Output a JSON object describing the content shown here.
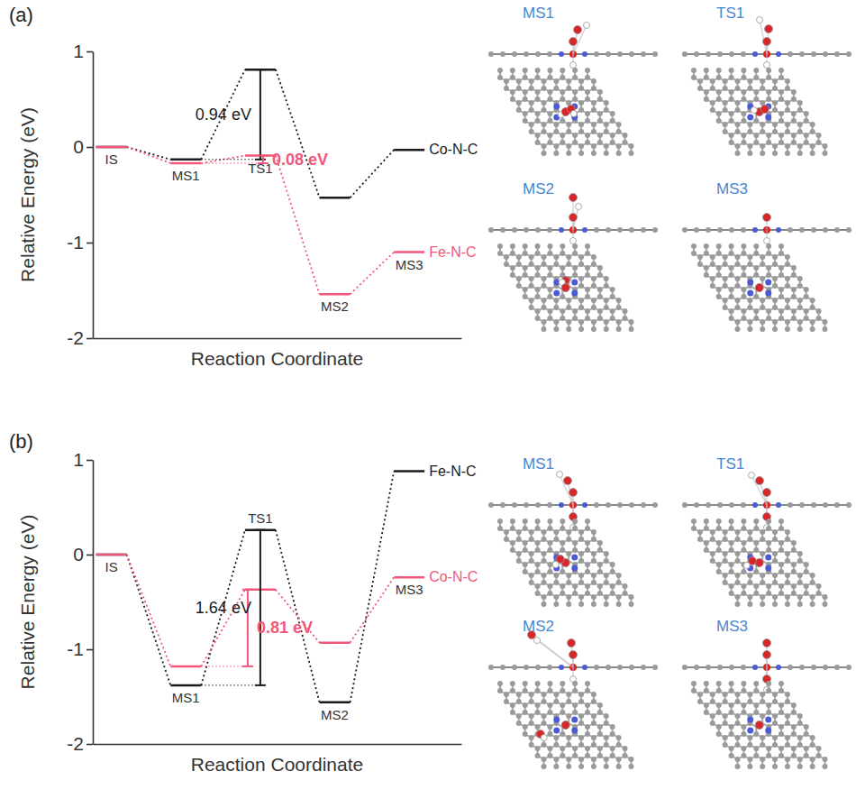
{
  "chart_data": [
    {
      "type": "energy_profile",
      "panel": "(a)",
      "x_label": "Reaction Coordinate",
      "y_label": "Relative Energy (eV)",
      "categories": [
        "IS",
        "MS1",
        "TS1",
        "MS2",
        "MS3"
      ],
      "series": [
        {
          "name": "Co-N-C",
          "color": "#1a1a1a",
          "values": [
            0,
            -0.13,
            0.81,
            -0.53,
            -0.03
          ]
        },
        {
          "name": "Fe-N-C",
          "color": "#f0577a",
          "values": [
            0,
            -0.17,
            -0.09,
            -1.54,
            -1.1
          ]
        }
      ],
      "ylim": [
        -2,
        1
      ],
      "yticks": [
        -2,
        -1,
        0,
        1
      ],
      "tick_labels": "y",
      "annotations": [
        {
          "text": "0.94 eV",
          "value": 0.94,
          "series": "Co-N-C",
          "from": "MS1",
          "to": "TS1"
        },
        {
          "text": "0.08 eV",
          "value": 0.08,
          "series": "Fe-N-C",
          "from": "MS1",
          "to": "TS1"
        }
      ],
      "structure_labels": [
        "MS1",
        "TS1",
        "MS2",
        "MS3"
      ]
    },
    {
      "type": "energy_profile",
      "panel": "(b)",
      "x_label": "Reaction Coordinate",
      "y_label": "Relative Energy (eV)",
      "categories": [
        "IS",
        "MS1",
        "TS1",
        "MS2",
        "MS3"
      ],
      "series": [
        {
          "name": "Fe-N-C",
          "color": "#1a1a1a",
          "values": [
            0,
            -1.38,
            0.26,
            -1.56,
            0.88
          ]
        },
        {
          "name": "Co-N-C",
          "color": "#f0577a",
          "values": [
            0,
            -1.18,
            -0.37,
            -0.93,
            -0.24
          ]
        }
      ],
      "ylim": [
        -2,
        1
      ],
      "yticks": [
        -2,
        -1,
        0,
        1
      ],
      "tick_labels": "y",
      "annotations": [
        {
          "text": "1.64 eV",
          "value": 1.64,
          "series": "Fe-N-C",
          "from": "MS1",
          "to": "TS1"
        },
        {
          "text": "0.81 eV",
          "value": 0.81,
          "series": "Co-N-C",
          "from": "MS1",
          "to": "TS1"
        }
      ],
      "structure_labels": [
        "MS1",
        "TS1",
        "MS2",
        "MS3"
      ]
    }
  ]
}
